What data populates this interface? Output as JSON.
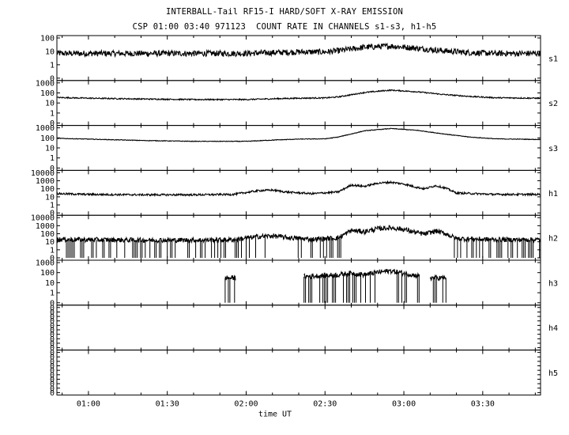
{
  "chart_data": {
    "type": "line",
    "title": "INTERBALL-Tail RF15-I HARD/SOFT X-RAY EMISSION",
    "subtitle": "CSP 01:00 03:40 971123  COUNT RATE IN CHANNELS s1-s3, h1-h5",
    "xlabel": "time UT",
    "x_range": [
      "00:48",
      "03:52"
    ],
    "x_ticks": [
      "01:00",
      "01:30",
      "02:00",
      "02:30",
      "03:00",
      "03:30"
    ],
    "y_scale": "log",
    "grid": false,
    "panels": [
      {
        "name": "s1",
        "y_ticks": [
          "100",
          "10",
          "1",
          "0"
        ],
        "series": {
          "x": [
            "00:48",
            "01:00",
            "01:20",
            "01:40",
            "02:00",
            "02:10",
            "02:20",
            "02:30",
            "02:35",
            "02:45",
            "02:55",
            "03:05",
            "03:15",
            "03:25",
            "03:35",
            "03:50"
          ],
          "y": [
            7,
            7,
            7,
            7,
            7,
            8,
            9,
            9,
            11,
            20,
            25,
            17,
            11,
            8,
            7,
            7
          ]
        }
      },
      {
        "name": "s2",
        "y_ticks": [
          "1000",
          "100",
          "10",
          "1",
          "0"
        ],
        "series": {
          "x": [
            "00:48",
            "01:00",
            "01:20",
            "01:40",
            "02:00",
            "02:10",
            "02:20",
            "02:30",
            "02:35",
            "02:45",
            "02:55",
            "03:05",
            "03:15",
            "03:25",
            "03:35",
            "03:50"
          ],
          "y": [
            35,
            30,
            25,
            22,
            22,
            26,
            30,
            32,
            40,
            110,
            190,
            130,
            70,
            45,
            33,
            30
          ]
        }
      },
      {
        "name": "s3",
        "y_ticks": [
          "1000",
          "100",
          "10",
          "1",
          "0"
        ],
        "series": {
          "x": [
            "00:48",
            "01:00",
            "01:20",
            "01:40",
            "02:00",
            "02:10",
            "02:20",
            "02:30",
            "02:35",
            "02:45",
            "02:55",
            "03:05",
            "03:15",
            "03:25",
            "03:35",
            "03:50"
          ],
          "y": [
            90,
            75,
            55,
            45,
            45,
            60,
            75,
            80,
            120,
            500,
            850,
            560,
            250,
            120,
            80,
            70
          ]
        }
      },
      {
        "name": "h1",
        "y_ticks": [
          "10000",
          "1000",
          "100",
          "10",
          "1",
          "0"
        ],
        "series": {
          "x": [
            "00:48",
            "01:00",
            "01:20",
            "01:40",
            "01:55",
            "02:05",
            "02:10",
            "02:15",
            "02:25",
            "02:35",
            "02:40",
            "02:45",
            "02:50",
            "02:55",
            "03:00",
            "03:05",
            "03:08",
            "03:12",
            "03:16",
            "03:20",
            "03:35",
            "03:50"
          ],
          "y": [
            25,
            20,
            18,
            18,
            20,
            60,
            70,
            40,
            25,
            40,
            300,
            200,
            500,
            650,
            400,
            150,
            100,
            250,
            120,
            30,
            20,
            20
          ]
        }
      },
      {
        "name": "h2",
        "y_ticks": [
          "10000",
          "1000",
          "100",
          "10",
          "1",
          "0"
        ],
        "series": {
          "x": [
            "00:48",
            "01:00",
            "01:20",
            "01:40",
            "01:55",
            "02:05",
            "02:10",
            "02:15",
            "02:25",
            "02:35",
            "02:40",
            "02:45",
            "02:50",
            "02:55",
            "03:00",
            "03:05",
            "03:08",
            "03:12",
            "03:16",
            "03:20",
            "03:35",
            "03:50"
          ],
          "y": [
            20,
            18,
            16,
            16,
            18,
            45,
            55,
            35,
            20,
            30,
            260,
            180,
            420,
            560,
            350,
            130,
            90,
            220,
            100,
            25,
            18,
            18
          ]
        }
      },
      {
        "name": "h3",
        "y_ticks": [
          "1000",
          "100",
          "10",
          "1",
          "0"
        ],
        "series": {
          "x": [
            "01:52",
            "01:56",
            "02:22",
            "02:35",
            "02:40",
            "02:45",
            "02:50",
            "02:55",
            "03:05",
            "03:10",
            "03:16"
          ],
          "y": [
            30,
            30,
            40,
            60,
            90,
            60,
            110,
            150,
            50,
            30,
            30
          ]
        }
      },
      {
        "name": "h4",
        "y_ticks": [
          "0",
          "0",
          "0",
          "0",
          "0",
          "0",
          "0",
          "0",
          "0",
          "0"
        ],
        "series": {
          "x": [],
          "y": []
        }
      },
      {
        "name": "h5",
        "y_ticks": [
          "0",
          "0",
          "0",
          "0",
          "0",
          "0",
          "0",
          "0",
          "0",
          "0"
        ],
        "series": {
          "x": [],
          "y": []
        }
      }
    ]
  }
}
